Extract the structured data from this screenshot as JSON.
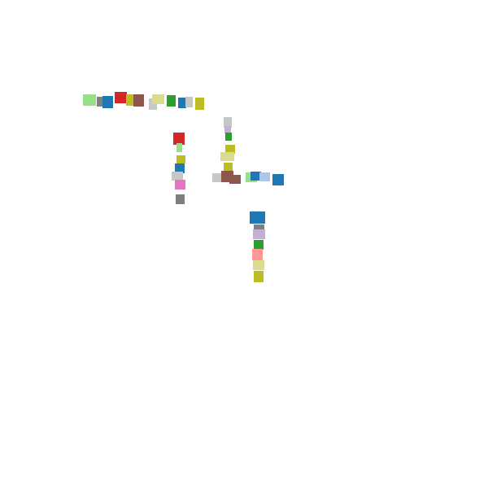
{
  "palette": {
    "blue": "#1f77b4",
    "lightblue": "#aec7e8",
    "green": "#2ca02c",
    "lightgreen": "#98df8a",
    "red": "#d62728",
    "salmon": "#ff9896",
    "purple": "#9467bd",
    "lavender": "#c5b0d5",
    "brown": "#8c564b",
    "pink": "#e377c2",
    "gray": "#7f7f7f",
    "lightgray": "#c7c7c7",
    "olive": "#bcbd22",
    "khaki": "#dbdb8d"
  },
  "clusters": [
    {
      "id": "top-row",
      "blocks": [
        "lightgreen",
        "gray",
        "blue",
        "red",
        "olive",
        "brown",
        "lightgray",
        "khaki",
        "green",
        "blue",
        "lightgray",
        "olive"
      ]
    },
    {
      "id": "left-column",
      "blocks": [
        "red",
        "lightgreen",
        "olive",
        "blue",
        "lightgray",
        "pink",
        "gray"
      ]
    },
    {
      "id": "middle-column",
      "blocks": [
        "lightgray",
        "lavender",
        "green",
        "olive",
        "khaki",
        "olive",
        "lightgray",
        "brown",
        "brown",
        "lightgreen",
        "blue",
        "lightblue",
        "blue"
      ]
    },
    {
      "id": "bottom-column",
      "blocks": [
        "blue",
        "gray",
        "lavender",
        "green",
        "salmon",
        "khaki",
        "olive"
      ]
    }
  ]
}
